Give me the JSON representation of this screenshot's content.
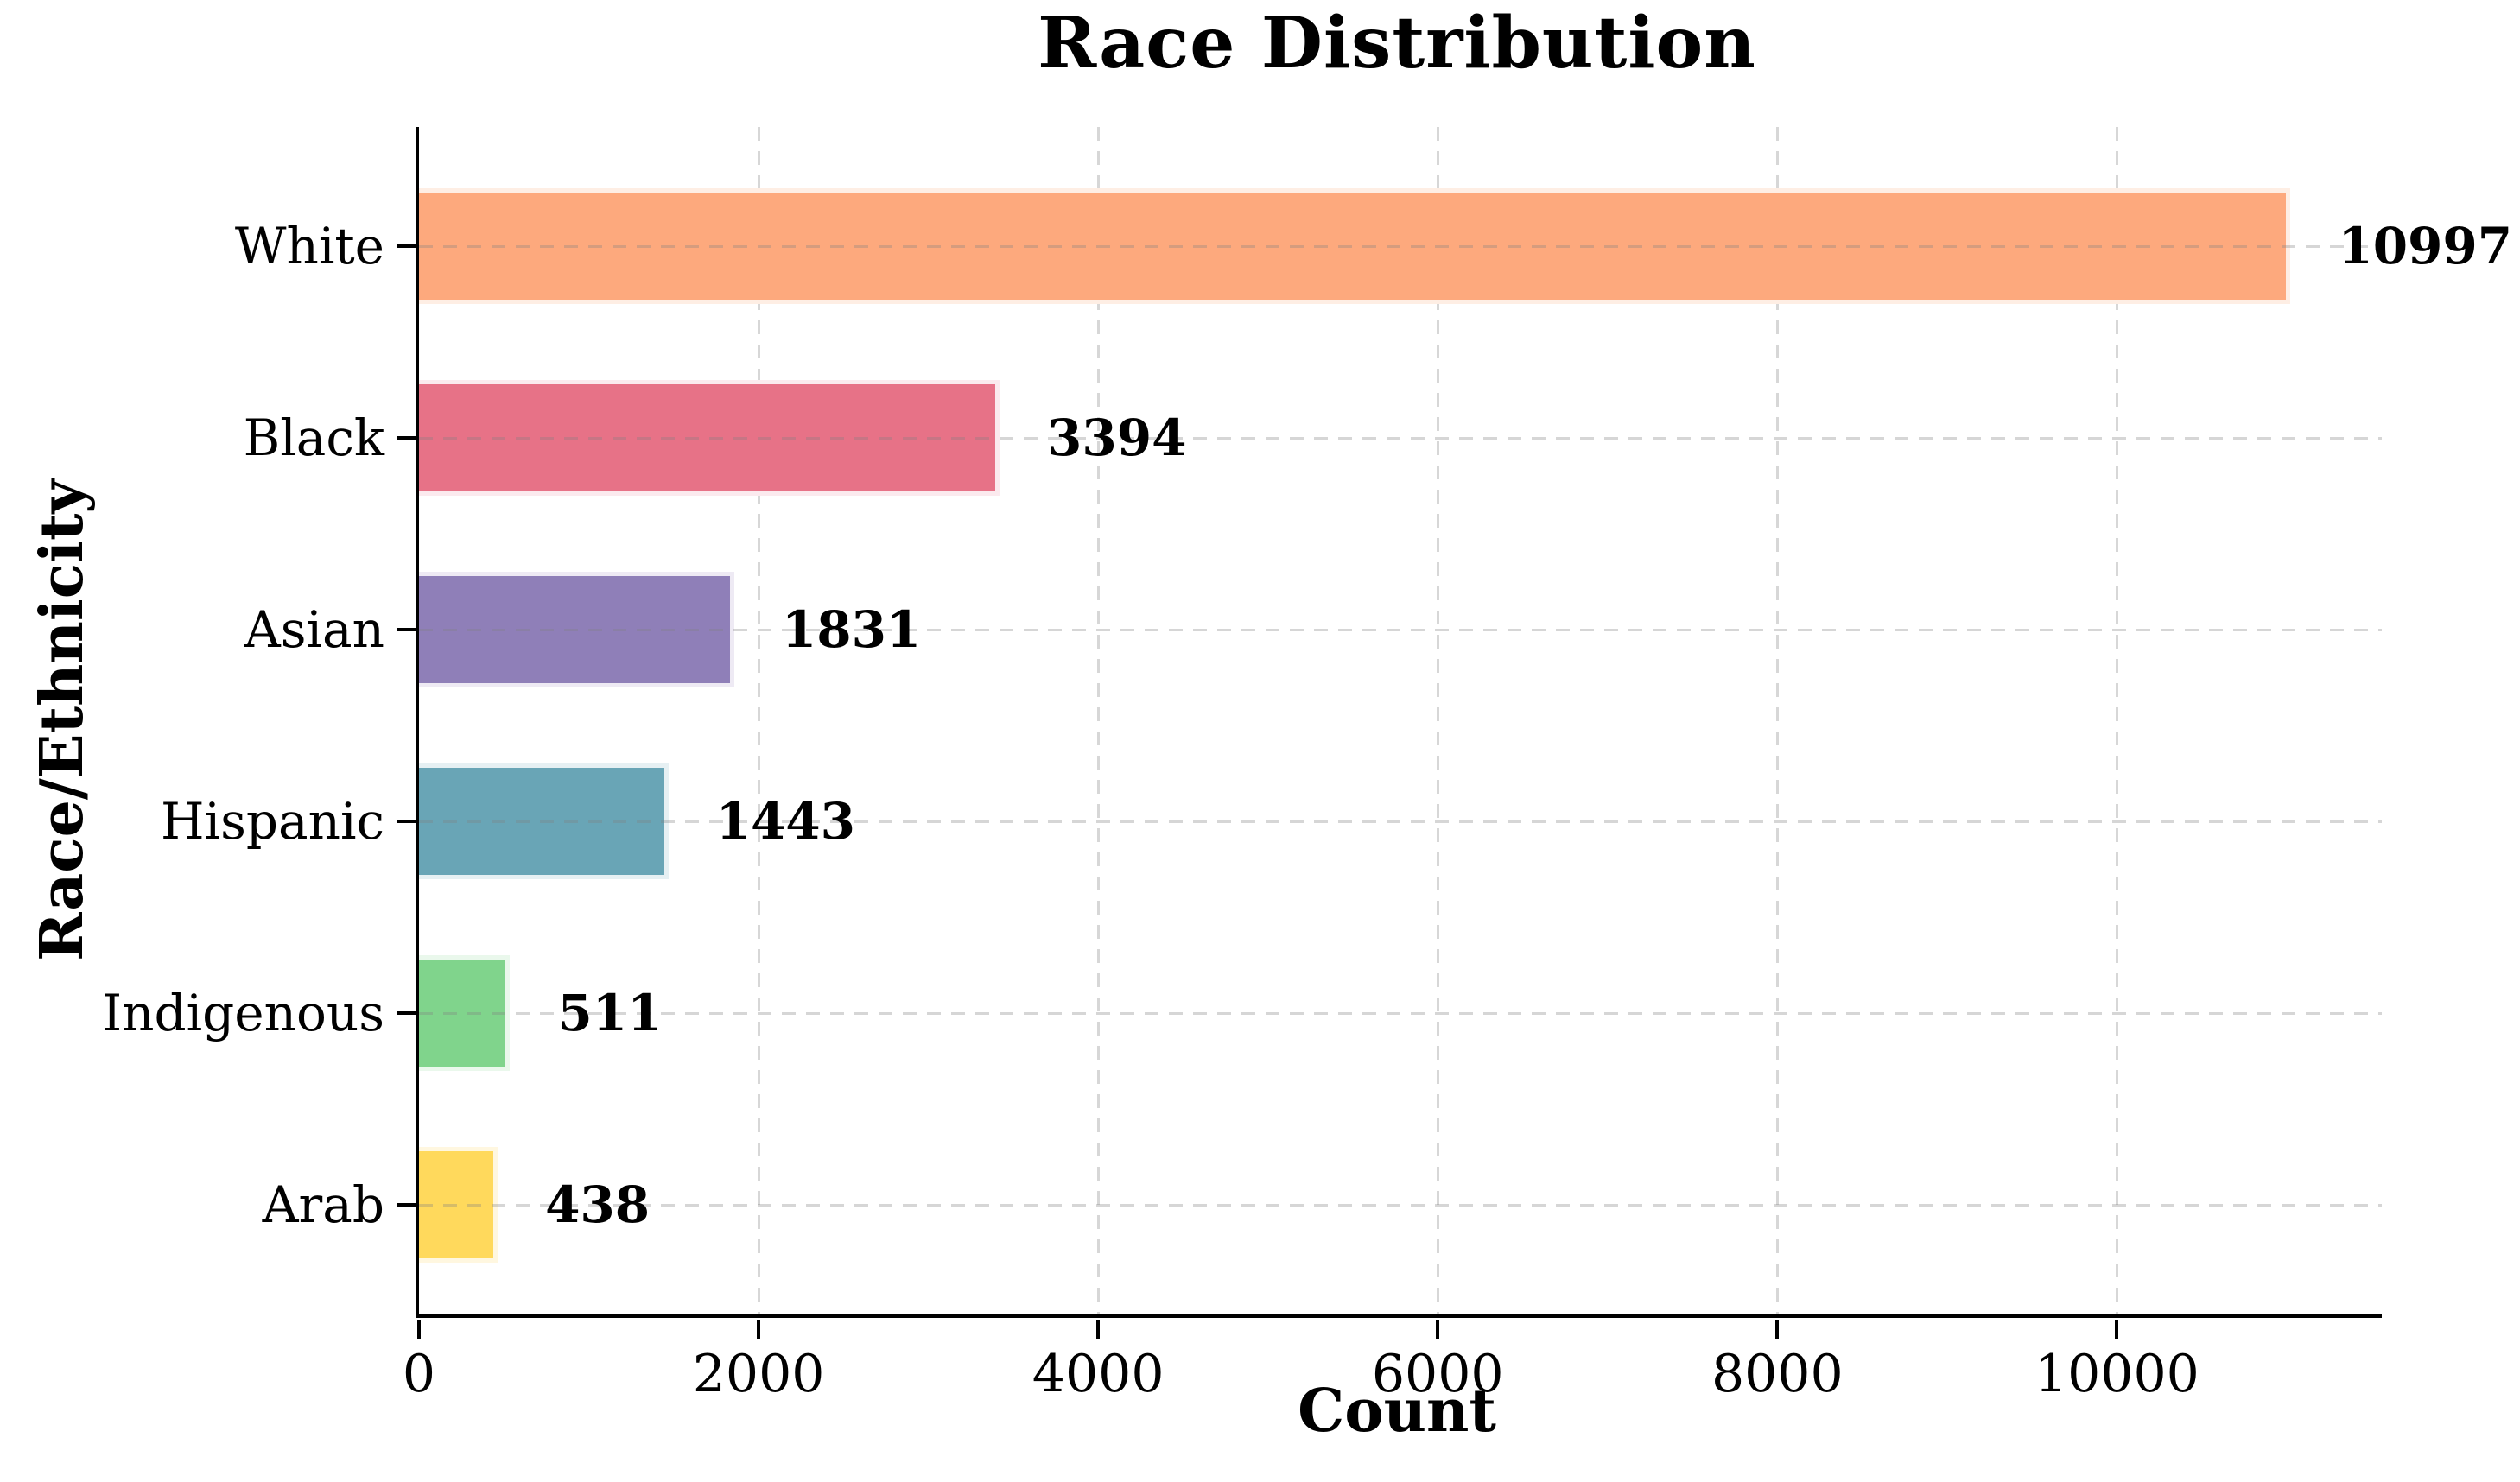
{
  "chart_data": {
    "type": "bar",
    "orientation": "horizontal",
    "title": "Race Distribution",
    "xlabel": "Count",
    "ylabel": "Race/Ethnicity",
    "categories": [
      "White",
      "Black",
      "Asian",
      "Hispanic",
      "Indigenous",
      "Arab"
    ],
    "values": [
      10997,
      3394,
      1831,
      1443,
      511,
      438
    ],
    "value_labels": [
      "10997",
      "3394",
      "1831",
      "1443",
      "511",
      "438"
    ],
    "bar_colors": [
      "#FDA97D",
      "#E77287",
      "#8F7FB8",
      "#69A5B6",
      "#80D48C",
      "#FFD95C"
    ],
    "bar_edge_colors": [
      "#FEEEE4",
      "#FBEAEE",
      "#EEEAF4",
      "#E6F0F3",
      "#EAF8EC",
      "#FFF7E0"
    ],
    "x_ticks": [
      0,
      2000,
      4000,
      6000,
      8000,
      10000
    ],
    "x_tick_labels": [
      "0",
      "2000",
      "4000",
      "6000",
      "8000",
      "10000"
    ],
    "xlim": [
      0,
      11560
    ],
    "grid": true,
    "grid_style": "dashed",
    "legend": "none"
  },
  "colors": {
    "background": "#ffffff",
    "axis": "#000000",
    "grid": "#d7d7d7",
    "text": "#000000"
  }
}
